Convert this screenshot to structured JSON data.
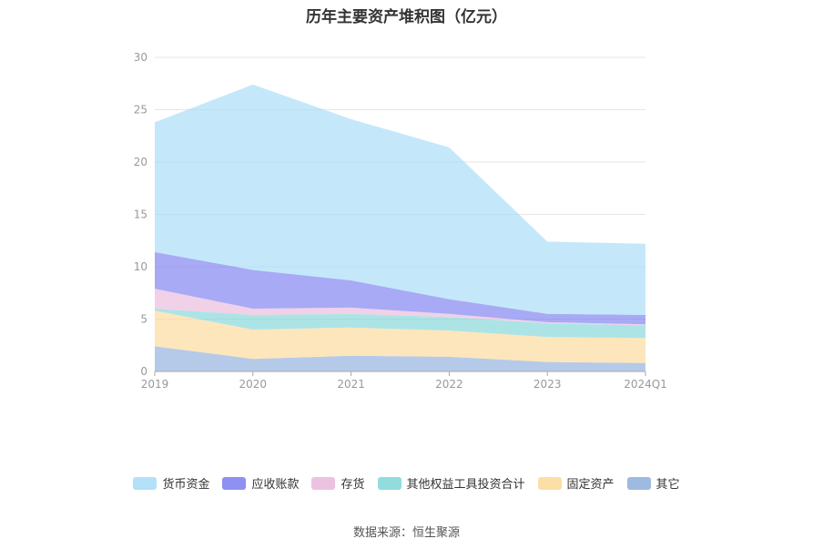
{
  "chart_data": {
    "type": "area",
    "stacked": true,
    "title": "历年主要资产堆积图（亿元）",
    "categories": [
      "2019",
      "2020",
      "2021",
      "2022",
      "2023",
      "2024Q1"
    ],
    "ylim": [
      0,
      30
    ],
    "yticks": [
      "0",
      "5",
      "10",
      "15",
      "20",
      "25",
      "30"
    ],
    "grid": true,
    "legend_position": "bottom",
    "series": [
      {
        "name": "其它",
        "color": "#8eaedc",
        "values": [
          2.4,
          1.2,
          1.5,
          1.4,
          0.9,
          0.8
        ]
      },
      {
        "name": "固定资产",
        "color": "#fcd898",
        "values": [
          3.4,
          2.8,
          2.7,
          2.5,
          2.4,
          2.4
        ]
      },
      {
        "name": "其他权益工具投资合计",
        "color": "#7fd6d8",
        "values": [
          0.2,
          1.4,
          1.3,
          1.3,
          1.3,
          1.2
        ]
      },
      {
        "name": "存货",
        "color": "#e8b8dc",
        "values": [
          1.9,
          0.6,
          0.6,
          0.3,
          0.1,
          0.1
        ]
      },
      {
        "name": "应收账款",
        "color": "#7a7cf0",
        "values": [
          3.5,
          3.7,
          2.6,
          1.4,
          0.8,
          0.9
        ]
      },
      {
        "name": "货币资金",
        "color": "#a5dcf7",
        "values": [
          12.4,
          17.7,
          15.4,
          14.5,
          6.9,
          6.8
        ]
      }
    ]
  },
  "legend_order": [
    "货币资金",
    "应收账款",
    "存货",
    "其他权益工具投资合计",
    "固定资产",
    "其它"
  ],
  "source": "数据来源：恒生聚源"
}
